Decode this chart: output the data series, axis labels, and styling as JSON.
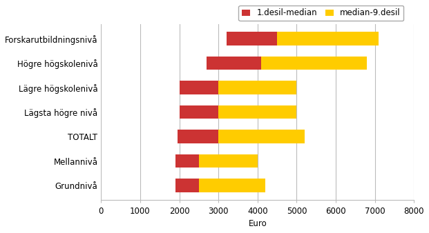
{
  "categories": [
    "Forskarutbildningsnivå",
    "Högre högskolenivå",
    "Lägre högskolenivå",
    "Lägsta högre nivå",
    "TOTALT",
    "Mellannivå",
    "Grundnivå"
  ],
  "decile1": [
    3200,
    2700,
    2000,
    2000,
    1950,
    1900,
    1900
  ],
  "median": [
    4500,
    4100,
    3000,
    3000,
    3000,
    2500,
    2500
  ],
  "decile9": [
    7100,
    6800,
    5000,
    5000,
    5200,
    4000,
    4200
  ],
  "color_red": "#cc3333",
  "color_yellow": "#ffcc00",
  "legend_red": "1.desil-median",
  "legend_yellow": "median-9.desil",
  "xlabel": "Euro",
  "xlim": [
    0,
    8000
  ],
  "xticks": [
    0,
    1000,
    2000,
    3000,
    4000,
    5000,
    6000,
    7000,
    8000
  ],
  "bar_height": 0.55,
  "background_color": "#ffffff",
  "grid_color": "#bbbbbb",
  "label_fontsize": 8.5,
  "tick_fontsize": 8.5,
  "legend_fontsize": 8.5
}
